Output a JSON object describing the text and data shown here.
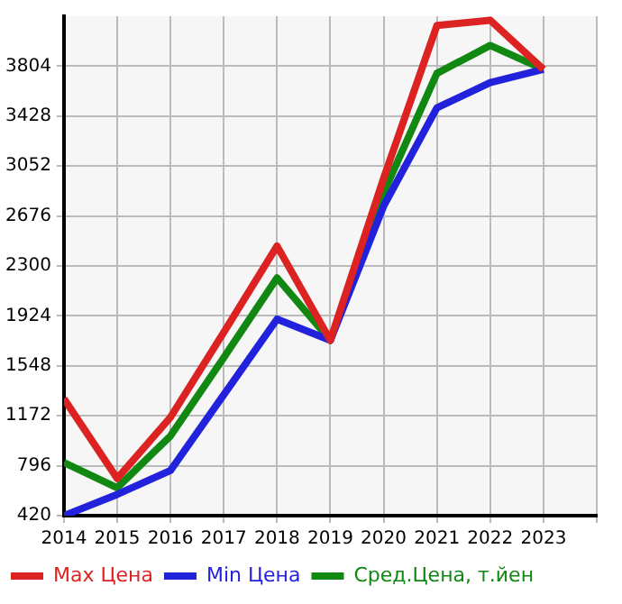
{
  "chart_data": {
    "type": "line",
    "x": [
      2014,
      2015,
      2016,
      2017,
      2018,
      2019,
      2020,
      2021,
      2022,
      2023
    ],
    "series": [
      {
        "name": "Max Цена",
        "color": "#dd2222",
        "values": [
          1300,
          700,
          1160,
          1800,
          2450,
          1740,
          2960,
          4110,
          4150,
          3780
        ]
      },
      {
        "name": "Min Цена",
        "color": "#2222dd",
        "values": [
          420,
          580,
          760,
          1330,
          1900,
          1740,
          2750,
          3490,
          3680,
          3780
        ]
      },
      {
        "name": "Сред.Цена, т.йен",
        "color": "#118811",
        "values": [
          820,
          630,
          1020,
          1610,
          2210,
          1740,
          2850,
          3750,
          3960,
          3780
        ]
      }
    ],
    "xlim": [
      2014,
      2024
    ],
    "xticks": [
      2014,
      2015,
      2016,
      2017,
      2018,
      2019,
      2020,
      2021,
      2022,
      2023,
      {
        "value": 2024,
        "label": null
      }
    ],
    "ylim": [
      420,
      4180
    ],
    "yticks": [
      420,
      796,
      1172,
      1548,
      1924,
      2300,
      2676,
      3052,
      3428,
      3804
    ],
    "grid": true,
    "legend": "bottom",
    "marker": "none",
    "line_style": "solid"
  }
}
